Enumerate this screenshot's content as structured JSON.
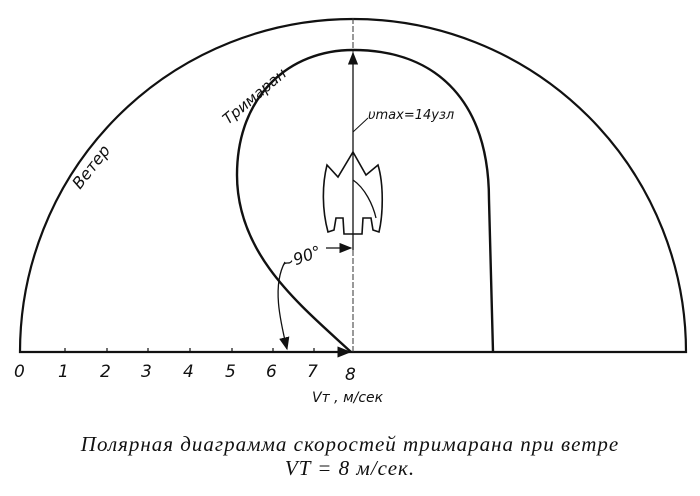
{
  "diagram": {
    "wind_label": "Ветер",
    "boat_label": "Тримаран",
    "vmax_label": "υmax=14узл",
    "angle_label": "~90°",
    "axis_ticks": [
      "0",
      "1",
      "2",
      "3",
      "4",
      "5",
      "6",
      "7",
      "8"
    ],
    "axis_label": "Vт , м/сек"
  },
  "caption": {
    "line1": "Полярная диаграмма скоростей тримарана при ветре",
    "line2": "VT = 8 м/сек."
  }
}
